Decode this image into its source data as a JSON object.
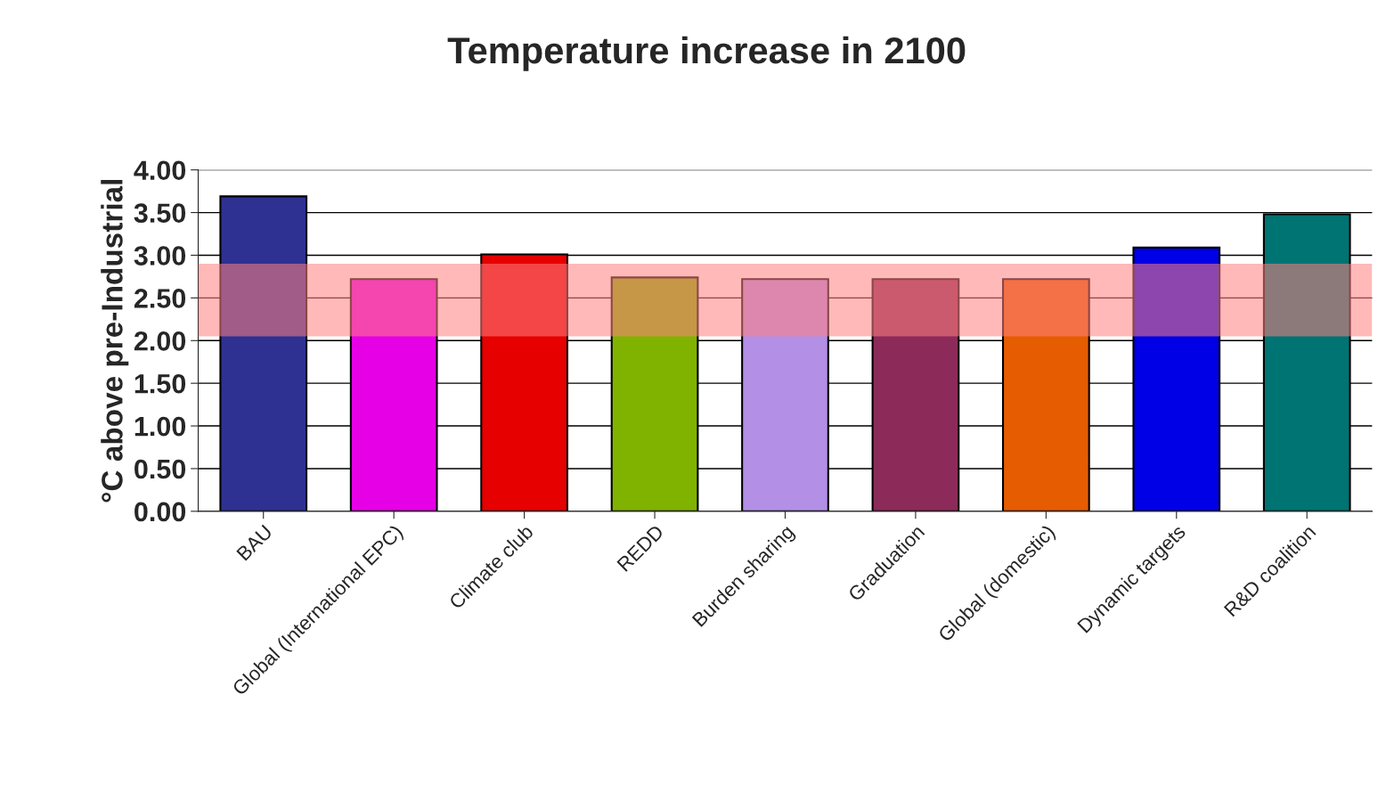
{
  "chart_data": {
    "type": "bar",
    "title": "Temperature increase in 2100",
    "ylabel": "°C above pre-Industrial",
    "categories": [
      "BAU",
      "Global (International EPC)",
      "Climate club",
      "REDD",
      "Burden sharing",
      "Graduation",
      "Global (domestic)",
      "Dynamic targets",
      "R&D coalition"
    ],
    "values": [
      3.69,
      2.72,
      3.01,
      2.74,
      2.72,
      2.72,
      2.72,
      3.09,
      3.48
    ],
    "colors": [
      "#2e3192",
      "#e600e6",
      "#e60000",
      "#80b300",
      "#b38fe6",
      "#8c2b5a",
      "#e65c00",
      "#0000e6",
      "#007373"
    ],
    "ylim": [
      0,
      4
    ],
    "yticks": [
      {
        "value": 0,
        "label": "0.00"
      },
      {
        "value": 0.5,
        "label": "0.50"
      },
      {
        "value": 1,
        "label": "1.00"
      },
      {
        "value": 1.5,
        "label": "1.50"
      },
      {
        "value": 2,
        "label": "2.00"
      },
      {
        "value": 2.5,
        "label": "2.50"
      },
      {
        "value": 3,
        "label": "3.00"
      },
      {
        "value": 3.5,
        "label": "3.50"
      },
      {
        "value": 4,
        "label": "4.00"
      }
    ],
    "bands": [
      {
        "axis": "y",
        "from": 2.05,
        "to": 2.9,
        "color": "#ff8080"
      }
    ],
    "grid": "y"
  }
}
